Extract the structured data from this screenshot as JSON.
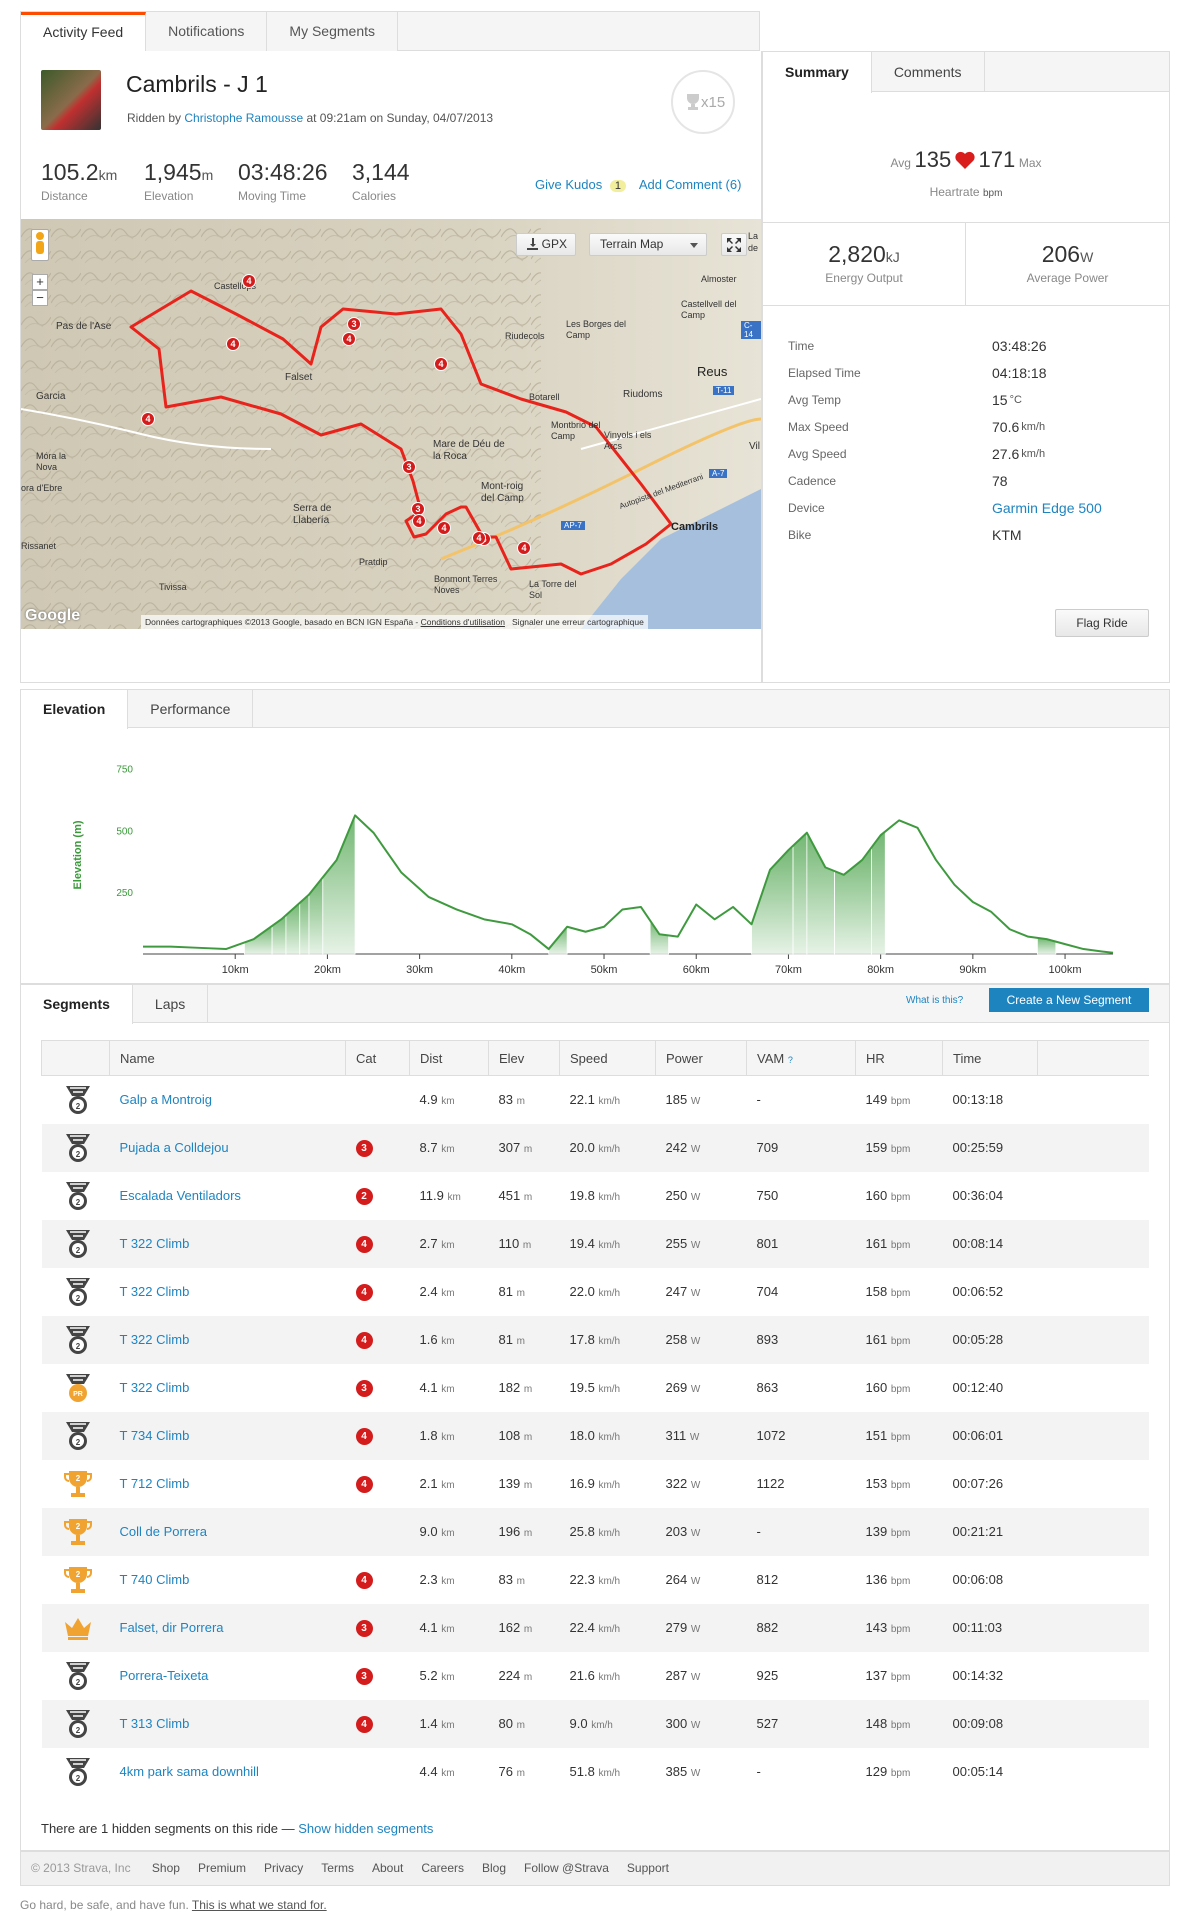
{
  "tabs": [
    "Activity Feed",
    "Notifications",
    "My Segments"
  ],
  "activity": {
    "title": "Cambrils - J 1",
    "ridden_prefix": "Ridden by",
    "athlete": "Christophe Ramousse",
    "ridden_suffix": "at 09:21am on Sunday, 04/07/2013",
    "achievements": "x15"
  },
  "stats": [
    {
      "value": "105.2",
      "unit": "km",
      "label": "Distance"
    },
    {
      "value": "1,945",
      "unit": "m",
      "label": "Elevation"
    },
    {
      "value": "03:48:26",
      "unit": "",
      "label": "Moving Time"
    },
    {
      "value": "3,144",
      "unit": "",
      "label": "Calories"
    }
  ],
  "kudos": {
    "label": "Give Kudos",
    "count": "1",
    "comment": "Add Comment (6)"
  },
  "map": {
    "gpx": "GPX",
    "type": "Terrain Map",
    "attribution": "Données cartographiques ©2013 Google, basado en BCN IGN España",
    "terms": "Conditions d'utilisation",
    "report": "Signaler une erreur cartographique",
    "google": "Google",
    "places": [
      "Castellops",
      "Pas de l'Ase",
      "Falset",
      "Garcia",
      "Móra la Nova",
      "ora d'Ebre",
      "Rissanet",
      "Serra de Llabería",
      "Pratdip",
      "Tivissa",
      "Mare de Déu de la Roca",
      "Mont-roig del Camp",
      "Montbrió del Camp",
      "Vinyols i els Arcs",
      "Botarell",
      "Riudoms",
      "Reus",
      "Riudecols",
      "Les Borges del Camp",
      "Almoster",
      "Castellvell del Camp",
      "Cambrils",
      "Bonmont Terres Noves",
      "La Torre del Sol",
      "Autopista del Mediterrani",
      "La",
      "de",
      "T-11",
      "C-14",
      "A-7",
      "AP-7",
      "Vil"
    ],
    "cat_markers": [
      "4",
      "4",
      "3",
      "4",
      "4",
      "4",
      "3",
      "3",
      "4",
      "4",
      "4",
      "4",
      "4"
    ]
  },
  "summary": {
    "tabs": [
      "Summary",
      "Comments"
    ],
    "avg_label": "Avg",
    "avg_hr": "135",
    "max_hr": "171",
    "max_label": "Max",
    "hr_label": "Heartrate",
    "hr_unit": "bpm",
    "energy": {
      "value": "2,820",
      "unit": "kJ",
      "label": "Energy Output"
    },
    "power": {
      "value": "206",
      "unit": "W",
      "label": "Average Power"
    },
    "details": [
      {
        "k": "Time",
        "v": "03:48:26",
        "u": ""
      },
      {
        "k": "Elapsed Time",
        "v": "04:18:18",
        "u": ""
      },
      {
        "k": "Avg Temp",
        "v": "15",
        "u": "°C"
      },
      {
        "k": "Max Speed",
        "v": "70.6",
        "u": "km/h"
      },
      {
        "k": "Avg Speed",
        "v": "27.6",
        "u": "km/h"
      },
      {
        "k": "Cadence",
        "v": "78",
        "u": ""
      },
      {
        "k": "Device",
        "v": "Garmin Edge 500",
        "u": "",
        "link": true
      },
      {
        "k": "Bike",
        "v": "KTM",
        "u": ""
      }
    ],
    "flag": "Flag Ride"
  },
  "chart_tabs": [
    "Elevation",
    "Performance"
  ],
  "chart_data": {
    "type": "area",
    "ylabel": "Elevation (m)",
    "y_ticks": [
      250,
      500,
      750
    ],
    "x_ticks": [
      "10km",
      "20km",
      "30km",
      "40km",
      "50km",
      "60km",
      "70km",
      "80km",
      "90km",
      "100km"
    ],
    "xlim": [
      0,
      105.2
    ],
    "ylim": [
      0,
      800
    ],
    "x": [
      0,
      3,
      6,
      9,
      12,
      15,
      18,
      21,
      23,
      25,
      28,
      31,
      34,
      37,
      40,
      42,
      44,
      46,
      48,
      50,
      52,
      54,
      56,
      58,
      60,
      62,
      64,
      66,
      68,
      70,
      72,
      74,
      76,
      78,
      80,
      82,
      84,
      86,
      88,
      90,
      92,
      94,
      96,
      98,
      100,
      102,
      104,
      105.2
    ],
    "y": [
      30,
      30,
      25,
      20,
      60,
      140,
      240,
      380,
      560,
      490,
      330,
      230,
      180,
      140,
      120,
      80,
      20,
      110,
      90,
      110,
      180,
      190,
      80,
      70,
      200,
      140,
      190,
      120,
      340,
      420,
      490,
      350,
      320,
      380,
      480,
      540,
      510,
      380,
      280,
      210,
      170,
      100,
      70,
      60,
      40,
      20,
      10,
      5
    ],
    "climbs": [
      [
        11,
        14
      ],
      [
        14,
        15.5
      ],
      [
        15.5,
        17
      ],
      [
        17,
        18
      ],
      [
        18,
        19.5
      ],
      [
        19.5,
        23
      ],
      [
        44,
        46
      ],
      [
        55,
        57
      ],
      [
        66,
        70.5
      ],
      [
        70.5,
        72
      ],
      [
        72,
        75
      ],
      [
        75,
        79
      ],
      [
        79,
        80.5
      ],
      [
        97,
        99
      ]
    ]
  },
  "segments_tabs": [
    "Segments",
    "Laps"
  ],
  "whatis": "What is this?",
  "create": "Create a New Segment",
  "columns": [
    "",
    "Name",
    "Cat",
    "Dist",
    "Elev",
    "Speed",
    "Power",
    "VAM",
    "HR",
    "Time"
  ],
  "vam_q": "?",
  "rows": [
    {
      "m": "silver",
      "name": "Galp a Montroig",
      "cat": "",
      "dist": "4.9",
      "elev": "83",
      "speed": "22.1",
      "power": "185",
      "vam": "-",
      "hr": "149",
      "time": "00:13:18"
    },
    {
      "m": "silver",
      "name": "Pujada a Colldejou",
      "cat": "3",
      "dist": "8.7",
      "elev": "307",
      "speed": "20.0",
      "power": "242",
      "vam": "709",
      "hr": "159",
      "time": "00:25:59"
    },
    {
      "m": "silver",
      "name": "Escalada Ventiladors",
      "cat": "2",
      "dist": "11.9",
      "elev": "451",
      "speed": "19.8",
      "power": "250",
      "vam": "750",
      "hr": "160",
      "time": "00:36:04"
    },
    {
      "m": "silver",
      "name": "T 322 Climb",
      "cat": "4",
      "dist": "2.7",
      "elev": "110",
      "speed": "19.4",
      "power": "255",
      "vam": "801",
      "hr": "161",
      "time": "00:08:14"
    },
    {
      "m": "silver",
      "name": "T 322 Climb",
      "cat": "4",
      "dist": "2.4",
      "elev": "81",
      "speed": "22.0",
      "power": "247",
      "vam": "704",
      "hr": "158",
      "time": "00:06:52"
    },
    {
      "m": "silver",
      "name": "T 322 Climb",
      "cat": "4",
      "dist": "1.6",
      "elev": "81",
      "speed": "17.8",
      "power": "258",
      "vam": "893",
      "hr": "161",
      "time": "00:05:28"
    },
    {
      "m": "pr",
      "name": "T 322 Climb",
      "cat": "3",
      "dist": "4.1",
      "elev": "182",
      "speed": "19.5",
      "power": "269",
      "vam": "863",
      "hr": "160",
      "time": "00:12:40"
    },
    {
      "m": "silver",
      "name": "T 734 Climb",
      "cat": "4",
      "dist": "1.8",
      "elev": "108",
      "speed": "18.0",
      "power": "311",
      "vam": "1072",
      "hr": "151",
      "time": "00:06:01"
    },
    {
      "m": "cup",
      "name": "T 712 Climb",
      "cat": "4",
      "dist": "2.1",
      "elev": "139",
      "speed": "16.9",
      "power": "322",
      "vam": "1122",
      "hr": "153",
      "time": "00:07:26"
    },
    {
      "m": "cup",
      "name": "Coll de Porrera",
      "cat": "",
      "dist": "9.0",
      "elev": "196",
      "speed": "25.8",
      "power": "203",
      "vam": "-",
      "hr": "139",
      "time": "00:21:21"
    },
    {
      "m": "cup",
      "name": "T 740 Climb",
      "cat": "4",
      "dist": "2.3",
      "elev": "83",
      "speed": "22.3",
      "power": "264",
      "vam": "812",
      "hr": "136",
      "time": "00:06:08"
    },
    {
      "m": "crown",
      "name": "Falset, dir Porrera",
      "cat": "3",
      "dist": "4.1",
      "elev": "162",
      "speed": "22.4",
      "power": "279",
      "vam": "882",
      "hr": "143",
      "time": "00:11:03"
    },
    {
      "m": "silver",
      "name": "Porrera-Teixeta",
      "cat": "3",
      "dist": "5.2",
      "elev": "224",
      "speed": "21.6",
      "power": "287",
      "vam": "925",
      "hr": "137",
      "time": "00:14:32"
    },
    {
      "m": "silver",
      "name": "T 313 Climb",
      "cat": "4",
      "dist": "1.4",
      "elev": "80",
      "speed": "9.0",
      "power": "300",
      "vam": "527",
      "hr": "148",
      "time": "00:09:08"
    },
    {
      "m": "silver",
      "name": "4km park sama downhill",
      "cat": "",
      "dist": "4.4",
      "elev": "76",
      "speed": "51.8",
      "power": "385",
      "vam": "-",
      "hr": "129",
      "time": "00:05:14"
    }
  ],
  "units": {
    "dist": "km",
    "elev": "m",
    "speed": "km/h",
    "power": "W",
    "hr": "bpm"
  },
  "hidden": {
    "text": "There are 1 hidden segments on this ride —",
    "link": "Show hidden segments"
  },
  "footer": {
    "copy": "© 2013 Strava, Inc",
    "links": [
      "Shop",
      "Premium",
      "Privacy",
      "Terms",
      "About",
      "Careers",
      "Blog",
      "Follow @Strava",
      "Support"
    ],
    "motto": "Go hard, be safe, and have fun.",
    "motto_link": "This is what we stand for."
  }
}
